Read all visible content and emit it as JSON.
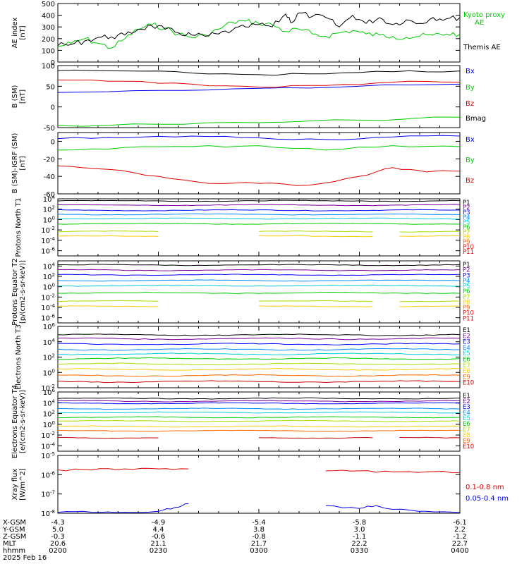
{
  "colors": {
    "black": "#000000",
    "green": "#00cc00",
    "blue": "#0000ee",
    "red": "#dd0000",
    "channels": [
      "#000000",
      "#7b0099",
      "#0000ff",
      "#0088ff",
      "#00ccdd",
      "#00cc00",
      "#aadd00",
      "#ffcc00",
      "#ff6600",
      "#ff0000",
      "#cc0000"
    ]
  },
  "bottom_labels": {
    "x_gsm": "X-GSM",
    "y_gsm": "Y-GSM",
    "z_gsm": "Z-GSM",
    "mlt": "MLT",
    "hhmm": "hhmm",
    "date": "2025 Feb 16"
  },
  "time_ticks": [
    "0200",
    "0230",
    "0300",
    "0330",
    "0400"
  ],
  "x_gsm_ticks": [
    "-4.3",
    "-4.9",
    "-5.4",
    "-5.8",
    "-6.1"
  ],
  "y_gsm_ticks": [
    "5.0",
    "4.4",
    "3.8",
    "3.0",
    "2.2"
  ],
  "z_gsm_ticks": [
    "-0.3",
    "-0.6",
    "-0.8",
    "-1.1",
    "-1.2"
  ],
  "mlt_ticks": [
    "20.6",
    "21.1",
    "21.7",
    "22.2",
    "22.7"
  ],
  "chart_data": [
    {
      "type": "line",
      "ylabel": "AE index [nT]",
      "ylim": [
        0,
        500
      ],
      "yticks": [
        "0",
        "100",
        "200",
        "300",
        "400",
        "500"
      ],
      "series": [
        {
          "name": "Kyoto proxy AE",
          "color": "green",
          "x": [
            0,
            4,
            8,
            12,
            16,
            20,
            24,
            28,
            32,
            36,
            40,
            44,
            48,
            52,
            56,
            60,
            64,
            68,
            72,
            76,
            80,
            84,
            88,
            92,
            96,
            100,
            104,
            108,
            112,
            116,
            120
          ],
          "values": [
            130,
            160,
            200,
            160,
            120,
            200,
            280,
            320,
            290,
            240,
            210,
            230,
            280,
            340,
            350,
            330,
            320,
            260,
            280,
            240,
            220,
            250,
            270,
            240,
            230,
            220,
            210,
            220,
            230,
            240,
            240
          ]
        },
        {
          "name": "Themis AE",
          "color": "black",
          "x": [
            0,
            4,
            8,
            12,
            16,
            20,
            24,
            28,
            32,
            36,
            40,
            44,
            48,
            52,
            56,
            60,
            64,
            68,
            70,
            72,
            76,
            80,
            84,
            88,
            92,
            96,
            100,
            104,
            108,
            112,
            116,
            120
          ],
          "values": [
            140,
            150,
            180,
            210,
            215,
            230,
            280,
            310,
            280,
            250,
            230,
            220,
            240,
            270,
            300,
            320,
            300,
            410,
            340,
            420,
            390,
            380,
            300,
            400,
            330,
            380,
            320,
            360,
            330,
            380,
            370,
            380
          ]
        }
      ]
    },
    {
      "type": "line",
      "ylabel": "B (SM) [nT]",
      "ylim": [
        -50,
        100
      ],
      "yticks": [
        "-50",
        "0",
        "50",
        "100"
      ],
      "series": [
        {
          "name": "Bx",
          "color": "blue",
          "x": [
            0,
            30,
            60,
            90,
            120
          ],
          "values": [
            35,
            40,
            45,
            50,
            55
          ]
        },
        {
          "name": "By",
          "color": "green",
          "x": [
            0,
            30,
            60,
            90,
            120
          ],
          "values": [
            -45,
            -42,
            -38,
            -32,
            -25
          ]
        },
        {
          "name": "Bz",
          "color": "red",
          "x": [
            0,
            20,
            40,
            60,
            80,
            100,
            120
          ],
          "values": [
            65,
            62,
            55,
            48,
            52,
            60,
            60
          ]
        },
        {
          "name": "Bmag",
          "color": "black",
          "x": [
            0,
            20,
            40,
            60,
            80,
            100,
            120
          ],
          "values": [
            88,
            87,
            82,
            78,
            80,
            85,
            87
          ]
        }
      ]
    },
    {
      "type": "line",
      "ylabel": "B (SM)-IGRF (SM) [nT]",
      "ylim": [
        -60,
        10
      ],
      "yticks": [
        "-60",
        "-40",
        "-20",
        "0"
      ],
      "series": [
        {
          "name": "Bx",
          "color": "blue",
          "x": [
            0,
            20,
            40,
            60,
            80,
            100,
            120
          ],
          "values": [
            3,
            4,
            6,
            4,
            2,
            5,
            6
          ]
        },
        {
          "name": "By",
          "color": "green",
          "x": [
            0,
            20,
            40,
            60,
            80,
            100,
            120
          ],
          "values": [
            -10,
            -7,
            -6,
            -5,
            -10,
            -5,
            -6
          ]
        },
        {
          "name": "Bz",
          "color": "red",
          "x": [
            0,
            15,
            30,
            45,
            60,
            75,
            90,
            100,
            110,
            120
          ],
          "values": [
            -28,
            -32,
            -40,
            -48,
            -48,
            -50,
            -40,
            -30,
            -35,
            -34
          ]
        }
      ]
    },
    {
      "type": "line",
      "ylabel": "Protons North T1",
      "log": true,
      "ylim": [
        -7,
        4
      ],
      "yticks": [
        "10-6",
        "10-4",
        "10-2",
        "100",
        "102",
        "104"
      ],
      "series": [
        {
          "name": "P1",
          "color": "channels.0",
          "values": [
            3.6
          ]
        },
        {
          "name": "P2",
          "color": "channels.1",
          "values": [
            2.8
          ]
        },
        {
          "name": "P3",
          "color": "channels.2",
          "values": [
            1.8
          ]
        },
        {
          "name": "P4",
          "color": "channels.3",
          "values": [
            1.0
          ]
        },
        {
          "name": "P5",
          "color": "channels.4",
          "values": [
            0.2
          ]
        },
        {
          "name": "P6",
          "color": "channels.5",
          "values": [
            -0.8
          ]
        },
        {
          "name": "P7",
          "color": "channels.6",
          "values": [
            -2.3
          ]
        },
        {
          "name": "P8",
          "color": "channels.7",
          "values": [
            -3.2
          ]
        },
        {
          "name": "P9",
          "color": "channels.8",
          "values": []
        },
        {
          "name": "P10",
          "color": "channels.9",
          "values": []
        },
        {
          "name": "P11",
          "color": "channels.10",
          "values": []
        }
      ]
    },
    {
      "type": "line",
      "ylabel": "Protons Equator T2 [p/(cm2-s-sr-keV)]",
      "log": true,
      "ylim": [
        -7,
        5
      ],
      "yticks": [
        "10-6",
        "10-4",
        "10-2",
        "100",
        "102",
        "104"
      ],
      "series": [
        {
          "name": "P1",
          "color": "channels.0",
          "values": [
            4.2
          ]
        },
        {
          "name": "P2",
          "color": "channels.1",
          "values": [
            3.2
          ]
        },
        {
          "name": "P3",
          "color": "channels.2",
          "values": [
            2.3
          ]
        },
        {
          "name": "P4",
          "color": "channels.3",
          "values": [
            1.2
          ]
        },
        {
          "name": "P5",
          "color": "channels.4",
          "values": [
            0.2
          ]
        },
        {
          "name": "P6",
          "color": "channels.5",
          "values": [
            -1.2
          ]
        },
        {
          "name": "P7",
          "color": "channels.6",
          "values": [
            -2.8
          ]
        },
        {
          "name": "P8",
          "color": "channels.7",
          "values": [
            -3.8
          ]
        },
        {
          "name": "P9",
          "color": "channels.8",
          "values": []
        },
        {
          "name": "P10",
          "color": "channels.9",
          "values": []
        },
        {
          "name": "P11",
          "color": "channels.10",
          "values": []
        }
      ]
    },
    {
      "type": "line",
      "ylabel": "Electrons North T3",
      "log": true,
      "ylim": [
        -2,
        6
      ],
      "yticks": [
        "10-2",
        "100",
        "102",
        "104",
        "106"
      ],
      "series": [
        {
          "name": "E1",
          "color": "channels.0",
          "values": [
            4.9
          ]
        },
        {
          "name": "E2",
          "color": "channels.1",
          "values": [
            4.4
          ]
        },
        {
          "name": "E3",
          "color": "channels.2",
          "values": [
            3.7
          ]
        },
        {
          "name": "E4",
          "color": "channels.3",
          "values": [
            3.0
          ]
        },
        {
          "name": "E5",
          "color": "channels.4",
          "values": [
            2.4
          ]
        },
        {
          "name": "E6",
          "color": "channels.5",
          "values": [
            1.8
          ]
        },
        {
          "name": "E7",
          "color": "channels.6",
          "values": [
            1.1
          ]
        },
        {
          "name": "E8",
          "color": "channels.7",
          "values": [
            0.4
          ]
        },
        {
          "name": "E9",
          "color": "channels.8",
          "values": [
            -0.4
          ]
        },
        {
          "name": "E10",
          "color": "channels.10",
          "values": [
            -1.2
          ]
        }
      ]
    },
    {
      "type": "line",
      "ylabel": "Electrons Equator T4 [e/(cm2-s-sr-keV)]",
      "log": true,
      "ylim": [
        -5,
        6
      ],
      "yticks": [
        "10-4",
        "10-2",
        "100",
        "102",
        "104",
        "106"
      ],
      "series": [
        {
          "name": "E1",
          "color": "channels.0",
          "values": [
            4.8
          ]
        },
        {
          "name": "E2",
          "color": "channels.1",
          "values": [
            4.3
          ]
        },
        {
          "name": "E3",
          "color": "channels.2",
          "values": [
            3.9
          ]
        },
        {
          "name": "E4",
          "color": "channels.3",
          "values": [
            2.9
          ]
        },
        {
          "name": "E5",
          "color": "channels.4",
          "values": [
            2.2
          ]
        },
        {
          "name": "E6",
          "color": "channels.5",
          "values": [
            1.3
          ]
        },
        {
          "name": "E7",
          "color": "channels.6",
          "values": [
            0.6
          ]
        },
        {
          "name": "E8",
          "color": "channels.7",
          "values": [
            -0.4
          ]
        },
        {
          "name": "E9",
          "color": "channels.8",
          "values": [
            -1.2
          ]
        },
        {
          "name": "E10",
          "color": "channels.10",
          "values": [
            -2.5
          ]
        }
      ]
    },
    {
      "type": "line",
      "ylabel": "Xray flux [W/m^2]",
      "log": true,
      "ylim": [
        -8,
        -5
      ],
      "yticks": [
        "10-8",
        "10-7",
        "10-6",
        "10-5"
      ],
      "series": [
        {
          "name": "0.1-0.8 nm",
          "color": "red",
          "x": [
            0,
            10,
            20,
            30,
            39,
            80,
            90,
            100,
            110,
            120
          ],
          "values": [
            -5.75,
            -5.75,
            -5.7,
            -5.7,
            -5.7,
            -5.8,
            -5.8,
            -5.85,
            -5.85,
            -5.9
          ]
        },
        {
          "name": "0.05-0.4 nm",
          "color": "blue",
          "x": [
            0,
            10,
            20,
            30,
            35,
            39,
            80,
            90,
            95,
            100,
            110,
            120
          ],
          "values": [
            -7.95,
            -7.95,
            -7.95,
            -7.9,
            -7.7,
            -7.5,
            -7.6,
            -7.75,
            -7.6,
            -7.8,
            -7.9,
            -8.0
          ]
        }
      ]
    }
  ]
}
